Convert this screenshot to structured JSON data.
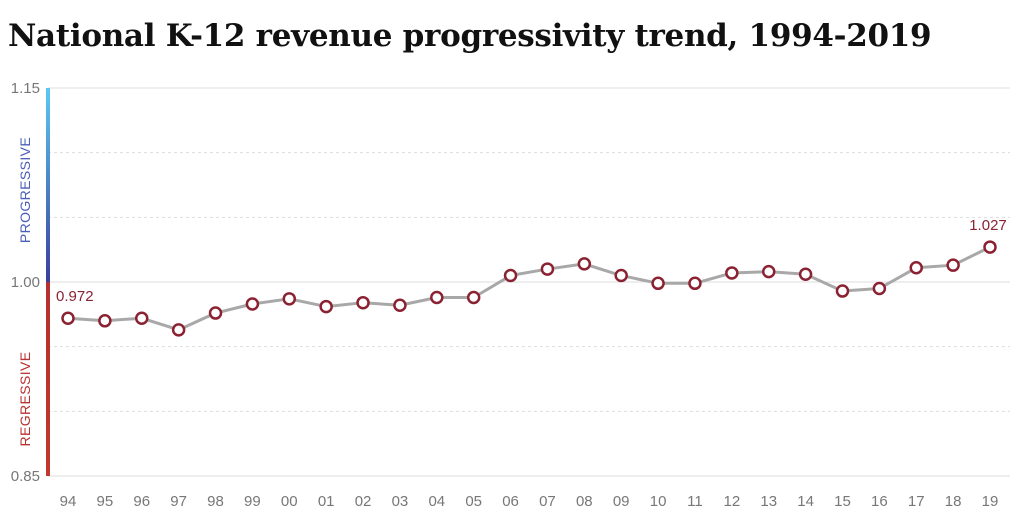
{
  "chart_data": {
    "type": "line",
    "title": "National K-12 revenue progressivity trend, 1994-2019",
    "categories": [
      "94",
      "95",
      "96",
      "97",
      "98",
      "99",
      "00",
      "01",
      "02",
      "03",
      "04",
      "05",
      "06",
      "07",
      "08",
      "09",
      "10",
      "11",
      "12",
      "13",
      "14",
      "15",
      "16",
      "17",
      "18",
      "19"
    ],
    "series": [
      {
        "values": [
          0.972,
          0.97,
          0.972,
          0.963,
          0.976,
          0.983,
          0.987,
          0.981,
          0.984,
          0.982,
          0.988,
          0.988,
          1.005,
          1.01,
          1.014,
          1.005,
          0.999,
          0.999,
          1.007,
          1.008,
          1.006,
          0.993,
          0.995,
          1.011,
          1.013,
          1.027
        ]
      }
    ],
    "ylim": [
      0.85,
      1.15
    ],
    "yticks": [
      "1.15",
      "1.00",
      "0.85"
    ],
    "grid": true,
    "band_labels": {
      "top": "PROGRESSIVE",
      "bottom": "REGRESSIVE"
    },
    "data_labels": [
      {
        "index": 0,
        "text": "0.972"
      },
      {
        "index": 25,
        "text": "1.027"
      }
    ],
    "colors": {
      "line": "#a8a8a8",
      "marker": "#8b2232",
      "progressive_top": "#5bc8f0",
      "progressive_bottom": "#3b3e9c",
      "regressive_top": "#b43030",
      "regressive_bottom": "#c0392b",
      "grid": "#dddddd"
    }
  }
}
